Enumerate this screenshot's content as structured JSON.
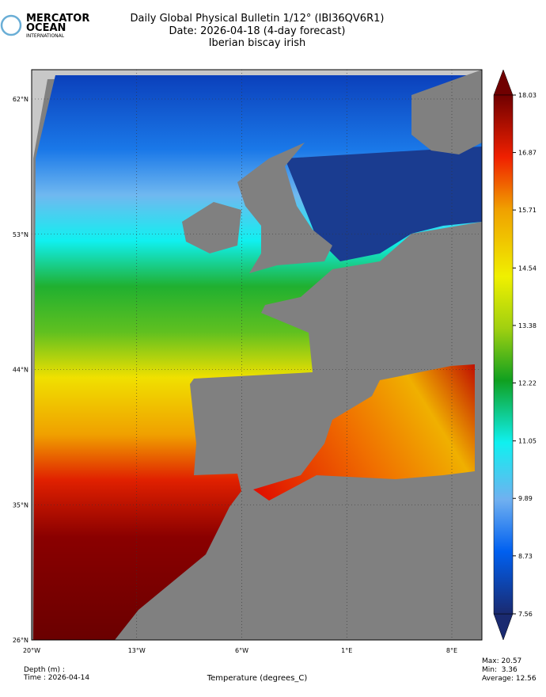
{
  "logo": {
    "line1": "MERCATOR",
    "line2": "OCEAN",
    "line3": "INTERNATIONAL"
  },
  "header": {
    "title": "Daily Global Physical Bulletin 1/12° (IBI36QV6R1)",
    "date": "Date: 2026-04-18 (4-day forecast)",
    "region": "Iberian biscay irish"
  },
  "map": {
    "lat_labels": [
      "62°N",
      "53°N",
      "44°N",
      "35°N",
      "26°N"
    ],
    "lon_labels": [
      "20°W",
      "13°W",
      "6°W",
      "1°E",
      "8°E"
    ]
  },
  "colorbar": {
    "ticks": [
      7.56,
      8.73,
      9.89,
      11.05,
      12.22,
      13.38,
      14.54,
      15.71,
      16.87,
      18.03
    ],
    "label": "Temperature (degrees_C)"
  },
  "footer": {
    "depth": "Depth (m) :",
    "time": "Time : 2026-04-14",
    "stats": [
      "Max: 20.57",
      "Min:  3.36",
      "Average: 12.56"
    ]
  }
}
